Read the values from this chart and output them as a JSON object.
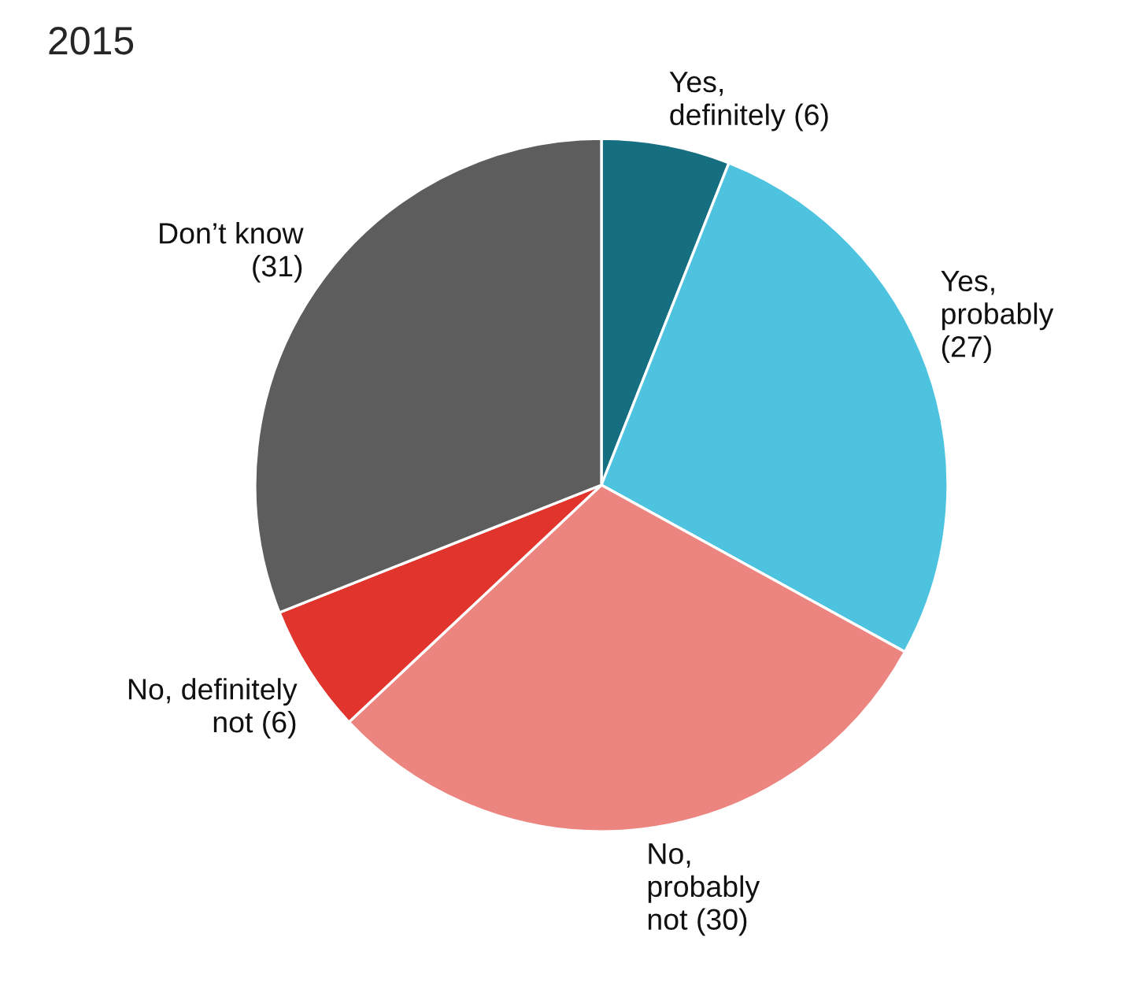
{
  "chart_data": {
    "type": "pie",
    "title": "2015",
    "categories": [
      "Yes,\ndefinitely (6)",
      "Yes,\nprobably\n(27)",
      "No,\nprobably\nnot (30)",
      "No, definitely\nnot (6)",
      "Don’t know\n(31)"
    ],
    "values": [
      6,
      27,
      30,
      6,
      31
    ],
    "colors": [
      "#156f80",
      "#4dc3e0",
      "#ec8580",
      "#e0342c",
      "#5d5d5d"
    ]
  }
}
